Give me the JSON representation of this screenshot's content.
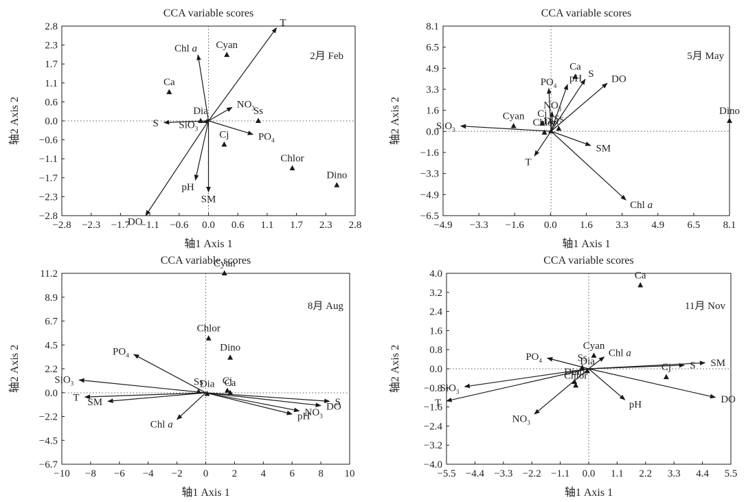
{
  "figure": {
    "panel_title": "CCA variable scores",
    "xlabel": "轴1 Axis 1",
    "ylabel": "轴2 Axis 2",
    "colors": {
      "ink": "#1a1a1a",
      "zero_line": "#555555",
      "background": "#ffffff"
    }
  },
  "chart_data": [
    {
      "type": "scatter",
      "title": "CCA variable scores",
      "panel_label": "2月 Feb",
      "xlabel": "轴1 Axis 1",
      "ylabel": "轴2 Axis 2",
      "xlim": [
        -2.8,
        2.8
      ],
      "ylim": [
        -2.8,
        2.8
      ],
      "xticks": [
        "−2.8",
        "−2.3",
        "−1.7",
        "−1.1",
        "−0.6",
        "0.0",
        "0.6",
        "1.1",
        "1.7",
        "2.3",
        "2.8"
      ],
      "yticks": [
        "2.8",
        "2.3",
        "1.7",
        "1.1",
        "0.6",
        "0.0",
        "−0.6",
        "−1.1",
        "−1.7",
        "−2.3",
        "−2.8"
      ],
      "vectors": [
        {
          "label": "T",
          "x": 1.3,
          "y": 2.75
        },
        {
          "label": "Chl",
          "label_italic": "a",
          "x": -0.2,
          "y": 1.95
        },
        {
          "label": "NO",
          "sub": "3",
          "x": 0.45,
          "y": 0.4
        },
        {
          "label": "S",
          "x": -0.85,
          "y": -0.05
        },
        {
          "label": "SiO",
          "sub": "3",
          "x": -0.1,
          "y": -0.05
        },
        {
          "label": "PO",
          "sub": "4",
          "x": 0.85,
          "y": -0.4
        },
        {
          "label": "pH",
          "x": -0.25,
          "y": -1.75
        },
        {
          "label": "SM",
          "x": 0.0,
          "y": -2.1
        },
        {
          "label": "DO",
          "x": -1.2,
          "y": -2.8
        }
      ],
      "points": [
        {
          "label": "Cyan",
          "x": 0.35,
          "y": 1.95
        },
        {
          "label": "Ca",
          "x": -0.75,
          "y": 0.85
        },
        {
          "label": "Dia",
          "x": -0.15,
          "y": 0.0
        },
        {
          "label": "Ss",
          "x": 0.95,
          "y": 0.0
        },
        {
          "label": "Cj",
          "x": 0.3,
          "y": -0.7
        },
        {
          "label": "Chlor",
          "x": 1.6,
          "y": -1.4
        },
        {
          "label": "Dino",
          "x": 2.45,
          "y": -1.9
        }
      ]
    },
    {
      "type": "scatter",
      "title": "CCA variable scores",
      "panel_label": "5月 May",
      "xlabel": "轴1 Axis 1",
      "ylabel": "轴2 Axis 2",
      "xlim": [
        -4.9,
        8.1
      ],
      "ylim": [
        -6.5,
        8.1
      ],
      "xticks": [
        "−4.9",
        "−3.3",
        "−1.6",
        "0.0",
        "1.6",
        "3.3",
        "4.9",
        "6.5",
        "8.1"
      ],
      "yticks": [
        "8.1",
        "6.5",
        "4.9",
        "3.3",
        "1.6",
        "0.0",
        "−1.6",
        "−3.3",
        "−4.9",
        "−6.5"
      ],
      "vectors": [
        {
          "label": "SiO",
          "sub": "3",
          "x": -4.1,
          "y": 0.4
        },
        {
          "label": "PO",
          "sub": "4",
          "x": -0.1,
          "y": 3.3
        },
        {
          "label": "pH",
          "x": 0.75,
          "y": 3.6
        },
        {
          "label": "S",
          "x": 1.55,
          "y": 4.0
        },
        {
          "label": "DO",
          "x": 2.55,
          "y": 3.7
        },
        {
          "label": "NO",
          "sub": "3",
          "x": 0.05,
          "y": 1.5
        },
        {
          "label": "SM",
          "x": 1.8,
          "y": -1.1
        },
        {
          "label": "T",
          "x": -0.75,
          "y": -1.9
        },
        {
          "label": "Chl",
          "label_italic": "a",
          "x": 3.4,
          "y": -5.3
        }
      ],
      "points": [
        {
          "label": "Cyan",
          "x": -1.7,
          "y": 0.4
        },
        {
          "label": "Cj",
          "x": -0.4,
          "y": 0.6
        },
        {
          "label": "Ca",
          "x": 1.1,
          "y": 4.2
        },
        {
          "label": "Dino",
          "x": 8.1,
          "y": 0.8
        },
        {
          "label": "Ss",
          "x": 0.35,
          "y": 0.2
        },
        {
          "label": "Chlor",
          "x": -0.3,
          "y": -0.1
        },
        {
          "label": "Dia",
          "x": 0.0,
          "y": 0.0
        }
      ]
    },
    {
      "type": "scatter",
      "title": "CCA variable scores",
      "panel_label": "8月 Aug",
      "xlabel": "轴1 Axis 1",
      "ylabel": "轴2 Axis 2",
      "xlim": [
        -10,
        10
      ],
      "ylim": [
        -6.7,
        11.2
      ],
      "xticks": [
        "−10",
        "−8",
        "−6",
        "−4",
        "−2",
        "0",
        "2",
        "4",
        "6",
        "8",
        "10"
      ],
      "yticks": [
        "11.2",
        "8.9",
        "6.7",
        "4.5",
        "2.2",
        "0.0",
        "−2.2",
        "−4.5",
        "−6.7"
      ],
      "vectors": [
        {
          "label": "PO",
          "sub": "4",
          "x": -5.0,
          "y": 3.6
        },
        {
          "label": "SiO",
          "sub": "3",
          "x": -8.8,
          "y": 1.2
        },
        {
          "label": "T",
          "x": -8.4,
          "y": -0.4
        },
        {
          "label": "SM",
          "x": -6.8,
          "y": -0.8
        },
        {
          "label": "Chl",
          "label_italic": "a",
          "x": -2.0,
          "y": -2.5
        },
        {
          "label": "S",
          "x": 8.6,
          "y": -0.8
        },
        {
          "label": "DO",
          "x": 8.0,
          "y": -1.2
        },
        {
          "label": "NO",
          "sub": "3",
          "x": 6.5,
          "y": -1.7
        },
        {
          "label": "pH",
          "x": 6.0,
          "y": -2.0
        }
      ],
      "points": [
        {
          "label": "Cyan",
          "x": 1.3,
          "y": 11.2
        },
        {
          "label": "Chlor",
          "x": 0.2,
          "y": 5.1
        },
        {
          "label": "Dino",
          "x": 1.7,
          "y": 3.3
        },
        {
          "label": "Cj",
          "x": 1.5,
          "y": 0.2
        },
        {
          "label": "Ca",
          "x": 1.7,
          "y": 0.0
        },
        {
          "label": "Ss",
          "x": -0.5,
          "y": 0.1
        },
        {
          "label": "Dia",
          "x": 0.1,
          "y": -0.1
        }
      ]
    },
    {
      "type": "scatter",
      "title": "CCA variable scores",
      "panel_label": "11月 Nov",
      "xlabel": "轴1 Axis 1",
      "ylabel": "轴2 Axis 2",
      "xlim": [
        -5.5,
        5.5
      ],
      "ylim": [
        -4.0,
        4.0
      ],
      "xticks": [
        "−5.5",
        "−4.4",
        "−3.3",
        "−2.2",
        "−1.1",
        "0.0",
        "1.1",
        "2.2",
        "3.3",
        "4.4",
        "5.5"
      ],
      "yticks": [
        "4.0",
        "3.2",
        "2.4",
        "1.6",
        "0.8",
        "0.0",
        "−0.8",
        "−1.6",
        "−2.4",
        "−3.2",
        "−4.0"
      ],
      "vectors": [
        {
          "label": "Chl",
          "label_italic": "a",
          "x": 0.6,
          "y": 0.5
        },
        {
          "label": "PO",
          "sub": "4",
          "x": -1.6,
          "y": 0.45
        },
        {
          "label": "S",
          "x": 3.7,
          "y": 0.15
        },
        {
          "label": "SM",
          "x": 4.5,
          "y": 0.25
        },
        {
          "label": "SiO",
          "sub": "3",
          "x": -4.8,
          "y": -0.75
        },
        {
          "label": "T",
          "x": -5.5,
          "y": -1.35
        },
        {
          "label": "DO",
          "x": 4.9,
          "y": -1.2
        },
        {
          "label": "pH",
          "x": 1.4,
          "y": -1.3
        },
        {
          "label": "NO",
          "sub": "3",
          "x": -2.1,
          "y": -1.9
        }
      ],
      "points": [
        {
          "label": "Ca",
          "x": 2.0,
          "y": 3.5
        },
        {
          "label": "Cyan",
          "x": 0.2,
          "y": 0.55
        },
        {
          "label": "Ss",
          "x": -0.25,
          "y": 0.05
        },
        {
          "label": "Cj",
          "x": 3.0,
          "y": -0.35
        },
        {
          "label": "Dino",
          "x": -0.55,
          "y": -0.55
        },
        {
          "label": "Chlor",
          "x": -0.5,
          "y": -0.7
        },
        {
          "label": "Dia",
          "x": -0.05,
          "y": -0.1
        }
      ]
    }
  ]
}
